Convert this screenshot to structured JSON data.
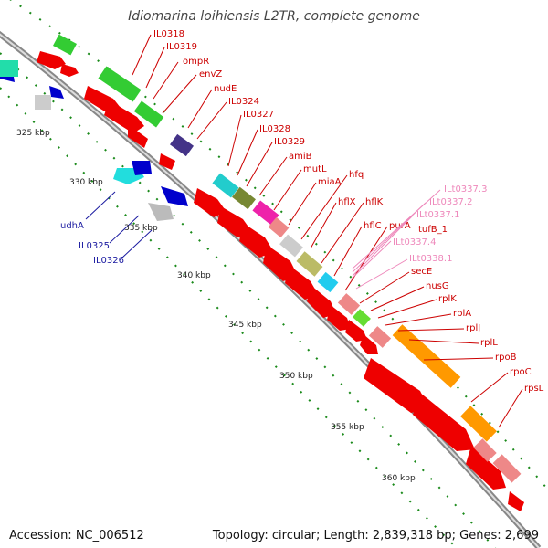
{
  "title": "Idiomarina loihiensis L2TR, complete genome",
  "footer": {
    "accession": "Accession: NC_006512",
    "summary": "Topology: circular; Length: 2,839,318 bp; Genes: 2,699"
  },
  "colors": {
    "forward_label": "#cc0000",
    "reverse_label": "#1a1aa0",
    "rna_label": "#ee88bb",
    "dots": "#1a8a1a"
  },
  "scale_labels": [
    "325 kbp",
    "330 kbp",
    "335 kbp",
    "340 kbp",
    "345 kbp",
    "350 kbp",
    "355 kbp",
    "360 kbp"
  ],
  "forward_genes": [
    "IL0318",
    "IL0319",
    "ompR",
    "envZ",
    "nudE",
    "IL0324",
    "IL0327",
    "IL0328",
    "IL0329",
    "amiB",
    "mutL",
    "miaA",
    "hfq",
    "hflX",
    "hflK",
    "hflC",
    "purA",
    "secE",
    "nusG",
    "rplK",
    "rplA",
    "rplJ",
    "rplL",
    "rpoB",
    "rpoC",
    "rpsL"
  ],
  "reverse_genes": [
    "udhA",
    "IL0325",
    "IL0326"
  ],
  "rna_genes": [
    "ILt0337.3",
    "ILt0337.2",
    "ILt0337.1",
    "tufB_1",
    "ILt0337.4",
    "ILt0338.1"
  ]
}
